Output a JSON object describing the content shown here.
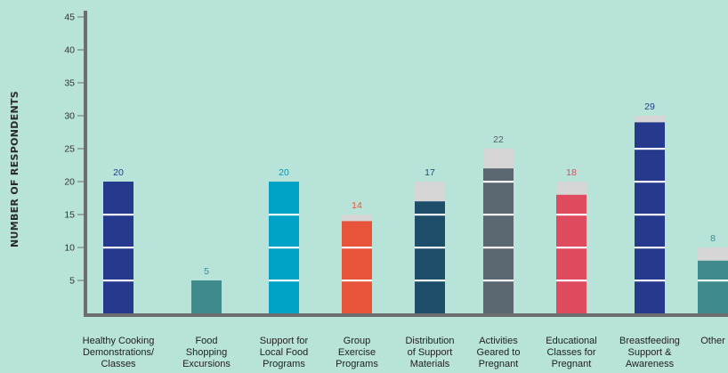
{
  "chart_data": {
    "type": "bar",
    "ylabel": "NUMBER OF RESPONDENTS",
    "xlabel": "",
    "title": "",
    "ylim": [
      0,
      45
    ],
    "yticks": [
      5,
      10,
      15,
      20,
      25,
      30,
      35,
      40,
      45
    ],
    "grid": false,
    "categories": [
      [
        "Healthy Cooking",
        "Demonstrations/",
        "Classes"
      ],
      [
        "Food",
        "Shopping",
        "Excursions"
      ],
      [
        "Support for",
        "Local Food",
        "Programs"
      ],
      [
        "Group",
        "Exercise",
        "Programs"
      ],
      [
        "Distribution",
        "of Support",
        "Materials"
      ],
      [
        "Activities",
        "Geared to",
        "Pregnant"
      ],
      [
        "Educational",
        "Classes for",
        "Pregnant"
      ],
      [
        "Breastfeeding",
        "Support &",
        "Awareness"
      ],
      [
        "Other"
      ]
    ],
    "values": [
      20,
      5,
      20,
      14,
      17,
      22,
      18,
      29,
      8
    ],
    "value_labels": [
      "20",
      "5",
      "20",
      "14",
      "17",
      "22",
      "18",
      "29",
      "8"
    ],
    "colors": [
      "#253a8c",
      "#3f8a8c",
      "#00a2c8",
      "#e8543a",
      "#1f4e6a",
      "#5a6670",
      "#e04a5f",
      "#253a8c",
      "#3f8a8c"
    ],
    "label_colors": [
      "#253a8c",
      "#3f8a8c",
      "#0096bf",
      "#e8543a",
      "#1f4e6a",
      "#555c63",
      "#e04a5f",
      "#253a8c",
      "#3f8a8c"
    ],
    "cap_color": "#d6d6d6",
    "axis_color": "#6e6e6e"
  }
}
